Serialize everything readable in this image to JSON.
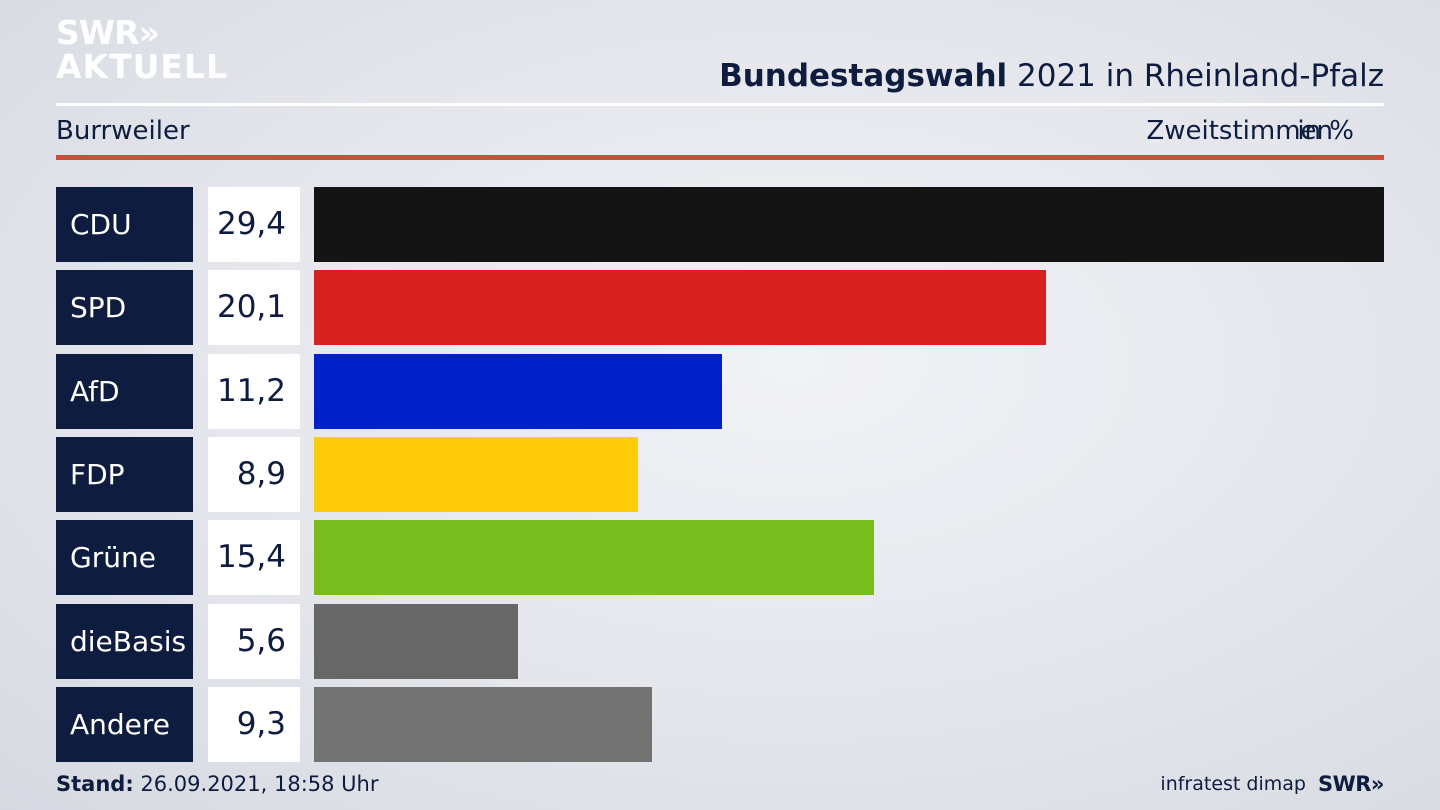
{
  "header": {
    "logo_line1": "SWR»",
    "logo_line2": "AKTUELL",
    "title_bold": "Bundestagswahl",
    "title_rest": " 2021 in Rheinland-Pfalz",
    "subtitle": "Burrweiler",
    "metric": "Zweitstimmen",
    "unit": "in %"
  },
  "chart_data": {
    "type": "bar",
    "orientation": "horizontal",
    "categories": [
      "CDU",
      "SPD",
      "AfD",
      "FDP",
      "Grüne",
      "dieBasis",
      "Andere"
    ],
    "values": [
      29.4,
      20.1,
      11.2,
      8.9,
      15.4,
      5.6,
      9.3
    ],
    "value_labels": [
      "29,4",
      "20,1",
      "11,2",
      "8,9",
      "15,4",
      "5,6",
      "9,3"
    ],
    "colors": [
      "#141414",
      "#d72020",
      "#0020c8",
      "#fecc0a",
      "#78bd1e",
      "#676767",
      "#737373"
    ],
    "title": "Bundestagswahl 2021 in Rheinland-Pfalz",
    "subtitle": "Burrweiler",
    "xlabel": "Zweitstimmen",
    "unit": "in %"
  },
  "footer": {
    "stand_label": "Stand:",
    "stand_value": " 26.09.2021, 18:58 Uhr",
    "source": "infratest dimap",
    "logo": "SWR»"
  },
  "colors": {
    "navy": "#0e1c3f",
    "accent_red": "#d24a3a"
  }
}
